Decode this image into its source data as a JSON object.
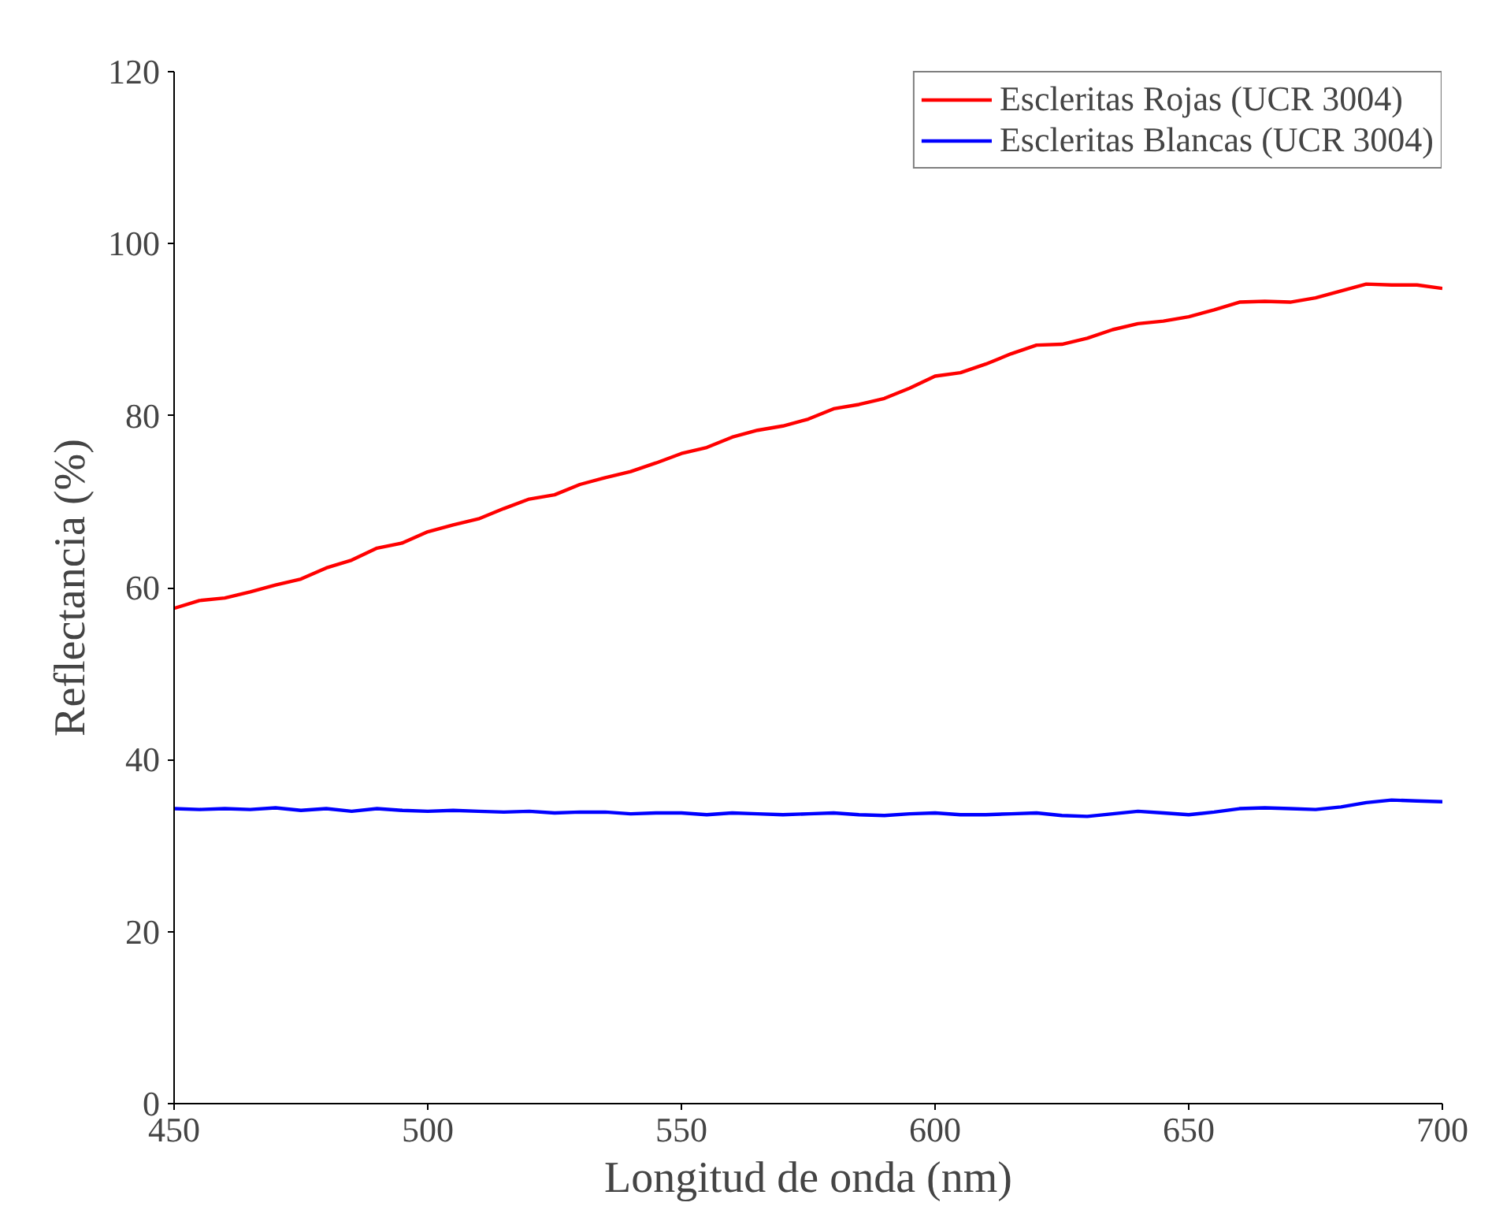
{
  "chart_data": {
    "type": "line",
    "xlabel": "Longitud de onda (nm)",
    "ylabel": "Reflectancia (%)",
    "xlim": [
      450,
      700
    ],
    "xticks": [
      450,
      500,
      550,
      600,
      650,
      700
    ],
    "ylim": [
      0,
      120
    ],
    "yticks": [
      0,
      20,
      40,
      60,
      80,
      100,
      120
    ],
    "grid": false,
    "legend": "top right",
    "line_style": "solid",
    "marker": "none",
    "x": [
      450,
      455,
      460,
      465,
      470,
      475,
      480,
      485,
      490,
      495,
      500,
      505,
      510,
      515,
      520,
      525,
      530,
      535,
      540,
      545,
      550,
      555,
      560,
      565,
      570,
      575,
      580,
      585,
      590,
      595,
      600,
      605,
      610,
      615,
      620,
      625,
      630,
      635,
      640,
      645,
      650,
      655,
      660,
      665,
      670,
      675,
      680,
      685,
      690,
      695,
      700
    ],
    "series": [
      {
        "name": "Escleritas Rojas (UCR 3004)",
        "color": "#ff0000",
        "values": [
          57.6,
          58.5,
          58.8,
          59.5,
          60.3,
          61.0,
          62.3,
          63.2,
          64.6,
          65.2,
          66.5,
          67.3,
          68.0,
          69.2,
          70.3,
          70.8,
          72.0,
          72.8,
          73.5,
          74.5,
          75.6,
          76.3,
          77.5,
          78.3,
          78.8,
          79.6,
          80.8,
          81.3,
          82.0,
          83.2,
          84.6,
          85.0,
          86.0,
          87.2,
          88.2,
          88.3,
          89.0,
          90.0,
          90.7,
          91.0,
          91.5,
          92.3,
          93.2,
          93.3,
          93.2,
          93.7,
          94.5,
          95.3,
          95.2,
          95.2,
          94.8
        ]
      },
      {
        "name": "Escleritas Blancas (UCR 3004)",
        "color": "#0000ff",
        "values": [
          34.3,
          34.2,
          34.3,
          34.2,
          34.4,
          34.1,
          34.3,
          34.0,
          34.3,
          34.1,
          34.0,
          34.1,
          34.0,
          33.9,
          34.0,
          33.8,
          33.9,
          33.9,
          33.7,
          33.8,
          33.8,
          33.6,
          33.8,
          33.7,
          33.6,
          33.7,
          33.8,
          33.6,
          33.5,
          33.7,
          33.8,
          33.6,
          33.6,
          33.7,
          33.8,
          33.5,
          33.4,
          33.7,
          34.0,
          33.8,
          33.6,
          33.9,
          34.3,
          34.4,
          34.3,
          34.2,
          34.5,
          35.0,
          35.3,
          35.2,
          35.1
        ]
      }
    ]
  }
}
